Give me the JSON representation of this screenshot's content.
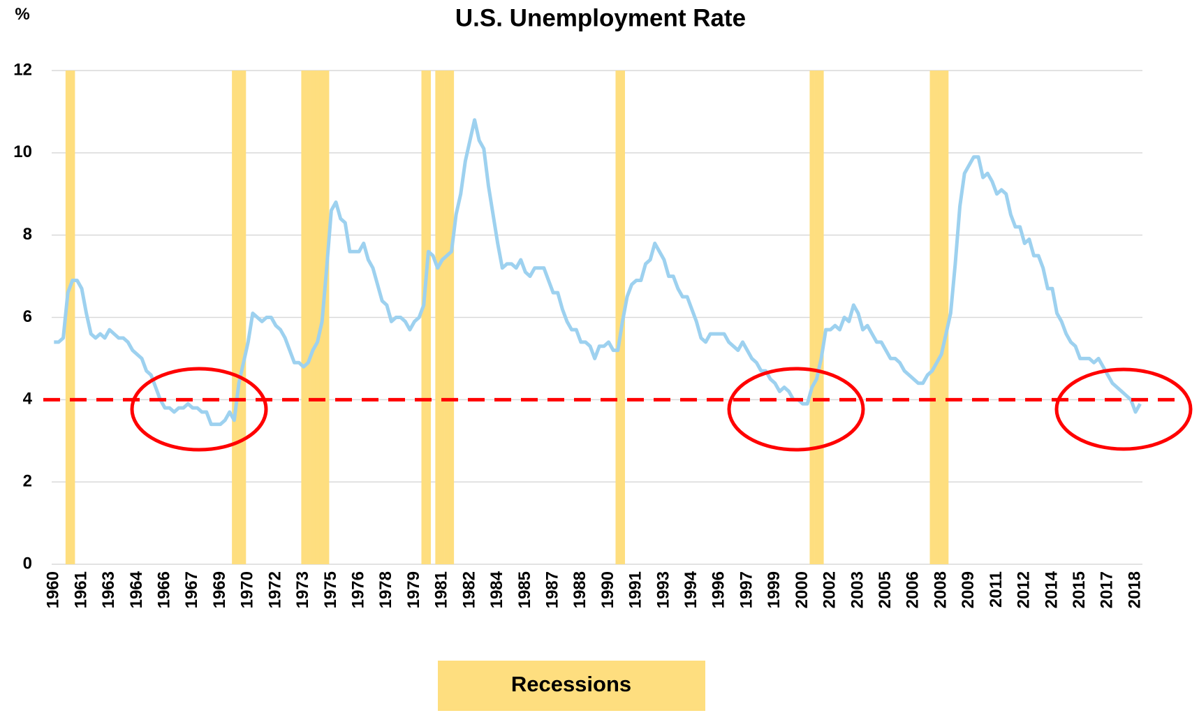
{
  "chart_data": {
    "type": "line",
    "title": "U.S. Unemployment Rate",
    "y_label": "%",
    "categories": [
      "1960",
      null,
      null,
      null,
      null,
      null,
      "1961",
      null,
      null,
      null,
      null,
      null,
      "1963",
      null,
      null,
      null,
      null,
      null,
      "1964",
      null,
      null,
      null,
      null,
      null,
      "1966",
      null,
      null,
      null,
      null,
      null,
      "1967",
      null,
      null,
      null,
      null,
      null,
      "1969",
      null,
      null,
      null,
      null,
      null,
      "1970",
      null,
      null,
      null,
      null,
      null,
      "1972",
      null,
      null,
      null,
      null,
      null,
      "1973",
      null,
      null,
      null,
      null,
      null,
      "1975",
      null,
      null,
      null,
      null,
      null,
      "1976",
      null,
      null,
      null,
      null,
      null,
      "1978",
      null,
      null,
      null,
      null,
      null,
      "1979",
      null,
      null,
      null,
      null,
      null,
      "1981",
      null,
      null,
      null,
      null,
      null,
      "1982",
      null,
      null,
      null,
      null,
      null,
      "1984",
      null,
      null,
      null,
      null,
      null,
      "1985",
      null,
      null,
      null,
      null,
      null,
      "1987",
      null,
      null,
      null,
      null,
      null,
      "1988",
      null,
      null,
      null,
      null,
      null,
      "1990",
      null,
      null,
      null,
      null,
      null,
      "1991",
      null,
      null,
      null,
      null,
      null,
      "1993",
      null,
      null,
      null,
      null,
      null,
      "1994",
      null,
      null,
      null,
      null,
      null,
      "1996",
      null,
      null,
      null,
      null,
      null,
      "1997",
      null,
      null,
      null,
      null,
      null,
      "1999",
      null,
      null,
      null,
      null,
      null,
      "2000",
      null,
      null,
      null,
      null,
      null,
      "2002",
      null,
      null,
      null,
      null,
      null,
      "2003",
      null,
      null,
      null,
      null,
      null,
      "2005",
      null,
      null,
      null,
      null,
      null,
      "2006",
      null,
      null,
      null,
      null,
      null,
      "2008",
      null,
      null,
      null,
      null,
      null,
      "2009",
      null,
      null,
      null,
      null,
      null,
      "2011",
      null,
      null,
      null,
      null,
      null,
      "2012",
      null,
      null,
      null,
      null,
      null,
      "2014",
      null,
      null,
      null,
      null,
      null,
      "2015",
      null,
      null,
      null,
      null,
      null,
      "2017",
      null,
      null,
      null,
      null,
      null,
      "2018",
      null
    ],
    "series": [
      {
        "type": "line",
        "color": "#9dd1ef",
        "values": [
          5.4,
          5.4,
          5.5,
          6.6,
          6.9,
          6.9,
          6.7,
          6.1,
          5.6,
          5.5,
          5.6,
          5.5,
          5.7,
          5.6,
          5.5,
          5.5,
          5.4,
          5.2,
          5.1,
          5.0,
          4.7,
          4.6,
          4.3,
          4.0,
          3.8,
          3.8,
          3.7,
          3.8,
          3.8,
          3.9,
          3.8,
          3.8,
          3.7,
          3.7,
          3.4,
          3.4,
          3.4,
          3.5,
          3.7,
          3.5,
          4.4,
          4.9,
          5.4,
          6.1,
          6.0,
          5.9,
          6.0,
          6.0,
          5.8,
          5.7,
          5.5,
          5.2,
          4.9,
          4.9,
          4.8,
          4.9,
          5.2,
          5.4,
          5.9,
          7.2,
          8.6,
          8.8,
          8.4,
          8.3,
          7.6,
          7.6,
          7.6,
          7.8,
          7.4,
          7.2,
          6.8,
          6.4,
          6.3,
          5.9,
          6.0,
          6.0,
          5.9,
          5.7,
          5.9,
          6.0,
          6.3,
          7.6,
          7.5,
          7.2,
          7.4,
          7.5,
          7.6,
          8.5,
          9.0,
          9.8,
          10.3,
          10.8,
          10.3,
          10.1,
          9.2,
          8.5,
          7.8,
          7.2,
          7.3,
          7.3,
          7.2,
          7.4,
          7.1,
          7.0,
          7.2,
          7.2,
          7.2,
          6.9,
          6.6,
          6.6,
          6.2,
          5.9,
          5.7,
          5.7,
          5.4,
          5.4,
          5.3,
          5.0,
          5.3,
          5.3,
          5.4,
          5.2,
          5.2,
          5.9,
          6.5,
          6.8,
          6.9,
          6.9,
          7.3,
          7.4,
          7.8,
          7.6,
          7.4,
          7.0,
          7.0,
          6.7,
          6.5,
          6.5,
          6.2,
          5.9,
          5.5,
          5.4,
          5.6,
          5.6,
          5.6,
          5.6,
          5.4,
          5.3,
          5.2,
          5.4,
          5.2,
          5.0,
          4.9,
          4.7,
          4.7,
          4.5,
          4.4,
          4.2,
          4.3,
          4.2,
          4.0,
          4.0,
          3.9,
          3.9,
          4.3,
          4.5,
          5.0,
          5.7,
          5.7,
          5.8,
          5.7,
          6.0,
          5.9,
          6.3,
          6.1,
          5.7,
          5.8,
          5.6,
          5.4,
          5.4,
          5.2,
          5.0,
          5.0,
          4.9,
          4.7,
          4.6,
          4.5,
          4.4,
          4.4,
          4.6,
          4.7,
          4.9,
          5.1,
          5.6,
          6.1,
          7.3,
          8.7,
          9.5,
          9.7,
          9.9,
          9.9,
          9.4,
          9.5,
          9.3,
          9.0,
          9.1,
          9.0,
          8.5,
          8.2,
          8.2,
          7.8,
          7.9,
          7.5,
          7.5,
          7.2,
          6.7,
          6.7,
          6.1,
          5.9,
          5.6,
          5.4,
          5.3,
          5.0,
          5.0,
          5.0,
          4.9,
          5.0,
          4.8,
          4.6,
          4.4,
          4.3,
          4.2,
          4.1,
          4.0,
          3.7,
          3.9
        ]
      },
      {
        "type": "bar",
        "name": "Recessions",
        "color": "#fede7f",
        "values": [
          null,
          null,
          null,
          12,
          12,
          null,
          null,
          null,
          null,
          null,
          null,
          null,
          null,
          null,
          null,
          null,
          null,
          null,
          null,
          null,
          null,
          null,
          null,
          null,
          null,
          null,
          null,
          null,
          null,
          null,
          null,
          null,
          null,
          null,
          null,
          null,
          null,
          null,
          null,
          12,
          12,
          12,
          null,
          null,
          null,
          null,
          null,
          null,
          null,
          null,
          null,
          null,
          null,
          null,
          12,
          12,
          12,
          12,
          12,
          12,
          null,
          null,
          null,
          null,
          null,
          null,
          null,
          null,
          null,
          null,
          null,
          null,
          null,
          null,
          null,
          null,
          null,
          null,
          null,
          null,
          12,
          12,
          null,
          12,
          12,
          12,
          12,
          null,
          null,
          null,
          null,
          null,
          null,
          null,
          null,
          null,
          null,
          null,
          null,
          null,
          null,
          null,
          null,
          null,
          null,
          null,
          null,
          null,
          null,
          null,
          null,
          null,
          null,
          null,
          null,
          null,
          null,
          null,
          null,
          null,
          null,
          null,
          12,
          12,
          null,
          null,
          null,
          null,
          null,
          null,
          null,
          null,
          null,
          null,
          null,
          null,
          null,
          null,
          null,
          null,
          null,
          null,
          null,
          null,
          null,
          null,
          null,
          null,
          null,
          null,
          null,
          null,
          null,
          null,
          null,
          null,
          null,
          null,
          null,
          null,
          null,
          null,
          null,
          null,
          12,
          12,
          12,
          null,
          null,
          null,
          null,
          null,
          null,
          null,
          null,
          null,
          null,
          null,
          null,
          null,
          null,
          null,
          null,
          null,
          null,
          null,
          null,
          null,
          null,
          null,
          12,
          12,
          12,
          12,
          null,
          null,
          null,
          null,
          null,
          null,
          null,
          null,
          null,
          null,
          null,
          null,
          null,
          null,
          null,
          null,
          null,
          null,
          null,
          null,
          null,
          null,
          null,
          null,
          null,
          null,
          null,
          null,
          null,
          null,
          null,
          null,
          null,
          null,
          null,
          null,
          null,
          null,
          null,
          null,
          null,
          null
        ]
      }
    ],
    "reference_line": {
      "value": 4,
      "color": "#ff0000"
    },
    "ylim": [
      0,
      12
    ],
    "yticks": [
      0,
      2,
      4,
      6,
      8,
      10,
      12
    ],
    "grid": true,
    "legend": "bottom"
  }
}
